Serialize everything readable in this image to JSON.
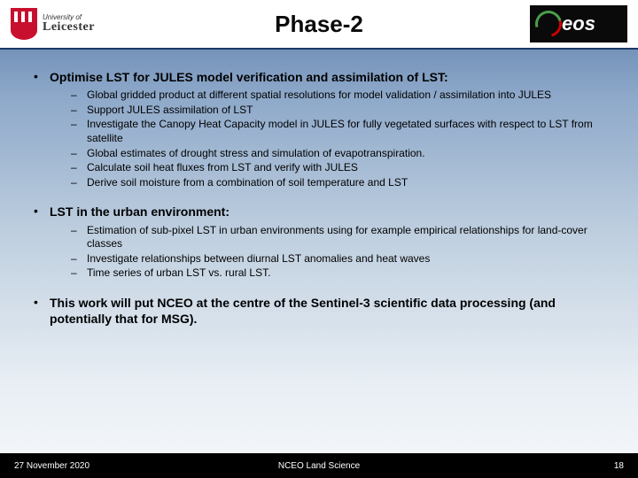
{
  "header": {
    "title": "Phase-2",
    "uni_top": "University of",
    "uni_bot": "Leicester",
    "eos": "eos"
  },
  "bullets": [
    {
      "head": "Optimise LST for JULES model verification and assimilation of LST:",
      "subs": [
        "Global gridded product at different spatial resolutions for model validation / assimilation into JULES",
        "Support JULES assimilation of LST",
        "Investigate the Canopy Heat Capacity model in JULES for fully vegetated surfaces with respect to LST from satellite",
        "Global estimates of drought stress and simulation of evapotranspiration.",
        "Calculate soil heat fluxes from LST and verify with JULES",
        "Derive soil moisture from a combination of soil temperature and LST"
      ]
    },
    {
      "head": "LST in the urban environment:",
      "subs": [
        "Estimation of sub-pixel LST in urban environments using for example empirical relationships for land-cover classes",
        "Investigate relationships between diurnal LST anomalies and heat waves",
        "Time series of urban LST vs. rural LST."
      ]
    },
    {
      "head": "This work will put NCEO at the centre of the Sentinel-3 scientific data processing (and potentially that for MSG).",
      "subs": []
    }
  ],
  "footer": {
    "date": "27 November 2020",
    "center": "NCEO Land Science",
    "page": "18"
  },
  "colors": {
    "header_border": "#1a3a66",
    "footer_bg": "#000000",
    "shield": "#c8102e"
  }
}
